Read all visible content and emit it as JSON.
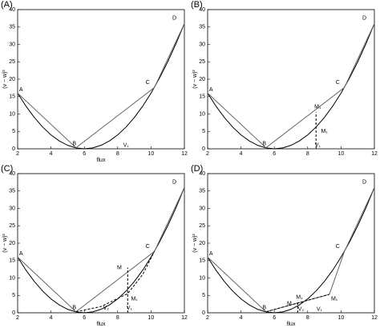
{
  "chart_data": [
    {
      "type": "line",
      "title": "(A)",
      "xlabel": "flux",
      "ylabel": "(v − w)²",
      "xlim": [
        2,
        12
      ],
      "ylim": [
        0,
        40
      ],
      "xticks": [
        2,
        4,
        6,
        8,
        10,
        12
      ],
      "yticks": [
        0,
        5,
        10,
        15,
        20,
        25,
        30,
        35,
        40
      ],
      "series": [
        {
          "color": "#000000",
          "dash": false,
          "x": [
            2,
            2.5,
            3,
            3.5,
            4,
            4.5,
            5,
            5.5,
            6,
            6.5,
            7,
            7.5,
            8,
            8.5,
            9,
            9.5,
            10,
            10.5,
            11,
            11.5,
            12
          ],
          "values": [
            16,
            12.25,
            9,
            6.25,
            4,
            2.25,
            1,
            0.25,
            0,
            0.25,
            1,
            2.25,
            4,
            6.25,
            9,
            12.25,
            16,
            20.25,
            25,
            30.25,
            36
          ]
        },
        {
          "color": "#666666",
          "dash": false,
          "x": [
            2,
            5.5,
            10.2,
            12
          ],
          "values": [
            16,
            0.3,
            17.6,
            36
          ]
        }
      ],
      "annotations": [
        {
          "text": "A",
          "x": 2.2,
          "y": 17
        },
        {
          "text": "B",
          "x": 5.4,
          "y": 1.5
        },
        {
          "text": "C",
          "x": 9.8,
          "y": 19
        },
        {
          "text": "D",
          "x": 11.4,
          "y": 37.5
        },
        {
          "text": "V₁",
          "x": 8.5,
          "y": 1
        }
      ]
    },
    {
      "type": "line",
      "title": "(B)",
      "ylabel": "(v − w)²",
      "xlim": [
        2,
        12
      ],
      "ylim": [
        0,
        40
      ],
      "xticks": [
        2,
        4,
        6,
        8,
        10,
        12
      ],
      "yticks": [
        0,
        5,
        10,
        15,
        20,
        25,
        30,
        35,
        40
      ],
      "series": [
        {
          "color": "#000000",
          "dash": false,
          "x": [
            2,
            2.5,
            3,
            3.5,
            4,
            4.5,
            5,
            5.5,
            6,
            6.5,
            7,
            7.5,
            8,
            8.5,
            9,
            9.5,
            10,
            10.5,
            11,
            11.5,
            12
          ],
          "values": [
            16,
            12.25,
            9,
            6.25,
            4,
            2.25,
            1,
            0.25,
            0,
            0.25,
            1,
            2.25,
            4,
            6.25,
            9,
            12.25,
            16,
            20.25,
            25,
            30.25,
            36
          ]
        },
        {
          "color": "#666666",
          "dash": false,
          "x": [
            2,
            5.5,
            10.2,
            12
          ],
          "values": [
            16,
            0.3,
            17.6,
            36
          ]
        },
        {
          "color": "#000000",
          "dash": true,
          "x": [
            8.5,
            8.5
          ],
          "values": [
            0,
            10.5
          ]
        }
      ],
      "annotations": [
        {
          "text": "A",
          "x": 2.2,
          "y": 17
        },
        {
          "text": "B",
          "x": 5.4,
          "y": 1.5
        },
        {
          "text": "C",
          "x": 9.8,
          "y": 19
        },
        {
          "text": "D",
          "x": 11.4,
          "y": 37.5
        },
        {
          "text": "M₁",
          "x": 8.6,
          "y": 12
        },
        {
          "text": "M₁",
          "x": 9,
          "y": 5
        },
        {
          "text": "V₁",
          "x": 8.6,
          "y": 1
        }
      ]
    },
    {
      "type": "line",
      "title": "(C)",
      "xlabel": "flux",
      "ylabel": "(v − w)²",
      "xlim": [
        2,
        12
      ],
      "ylim": [
        0,
        40
      ],
      "xticks": [
        2,
        4,
        6,
        8,
        10,
        12
      ],
      "yticks": [
        0,
        5,
        10,
        15,
        20,
        25,
        30,
        35,
        40
      ],
      "series": [
        {
          "color": "#000000",
          "dash": false,
          "x": [
            2,
            2.5,
            3,
            3.5,
            4,
            4.5,
            5,
            5.5,
            6,
            6.5,
            7,
            7.5,
            8,
            8.5,
            9,
            9.5,
            10,
            10.5,
            11,
            11.5,
            12
          ],
          "values": [
            16,
            12.25,
            9,
            6.25,
            4,
            2.25,
            1,
            0.25,
            0,
            0.25,
            1,
            2.25,
            4,
            6.25,
            9,
            12.25,
            16,
            20.25,
            25,
            30.25,
            36
          ]
        },
        {
          "color": "#666666",
          "dash": false,
          "x": [
            2,
            5.5,
            10.2,
            12
          ],
          "values": [
            16,
            0.3,
            17.6,
            36
          ]
        },
        {
          "color": "#000000",
          "dash": true,
          "x": [
            5.5,
            7,
            8.6,
            9.5,
            10.2
          ],
          "values": [
            0.3,
            1.8,
            5.5,
            11,
            17.6
          ]
        },
        {
          "color": "#000000",
          "dash": true,
          "x": [
            8.6,
            8.6
          ],
          "values": [
            0,
            13
          ]
        }
      ],
      "annotations": [
        {
          "text": "A",
          "x": 2.2,
          "y": 17
        },
        {
          "text": "B",
          "x": 5.4,
          "y": 1.5
        },
        {
          "text": "C",
          "x": 9.8,
          "y": 19
        },
        {
          "text": "D",
          "x": 11.4,
          "y": 37.5
        },
        {
          "text": "M",
          "x": 8.1,
          "y": 13
        },
        {
          "text": "M₁",
          "x": 9,
          "y": 4
        },
        {
          "text": "V₂",
          "x": 7.3,
          "y": 1.3
        },
        {
          "text": "V₁",
          "x": 8.7,
          "y": 1.3
        }
      ]
    },
    {
      "type": "line",
      "title": "(D)",
      "xlabel": "flux",
      "ylabel": "(v − w)²",
      "xlim": [
        2,
        12
      ],
      "ylim": [
        0,
        40
      ],
      "xticks": [
        2,
        4,
        6,
        8,
        10,
        12
      ],
      "yticks": [
        0,
        5,
        10,
        15,
        20,
        25,
        30,
        35,
        40
      ],
      "series": [
        {
          "color": "#000000",
          "dash": false,
          "x": [
            2,
            2.5,
            3,
            3.5,
            4,
            4.5,
            5,
            5.5,
            6,
            6.5,
            7,
            7.5,
            8,
            8.5,
            9,
            9.5,
            10,
            10.5,
            11,
            11.5,
            12
          ],
          "values": [
            16,
            12.25,
            9,
            6.25,
            4,
            2.25,
            1,
            0.25,
            0,
            0.25,
            1,
            2.25,
            4,
            6.25,
            9,
            12.25,
            16,
            20.25,
            25,
            30.25,
            36
          ]
        },
        {
          "color": "#666666",
          "dash": false,
          "x": [
            2,
            5.5,
            9.3,
            10.2,
            12
          ],
          "values": [
            16,
            0.3,
            5.3,
            17.6,
            36
          ]
        },
        {
          "color": "#000000",
          "dash": true,
          "x": [
            5.5,
            7.4,
            9.3
          ],
          "values": [
            0.3,
            2.8,
            5.3
          ]
        },
        {
          "color": "#000000",
          "dash": true,
          "x": [
            7.4,
            7.4
          ],
          "values": [
            0,
            3.5
          ]
        }
      ],
      "annotations": [
        {
          "text": "A",
          "x": 2.2,
          "y": 17
        },
        {
          "text": "B",
          "x": 5.4,
          "y": 1.5
        },
        {
          "text": "C",
          "x": 9.8,
          "y": 19
        },
        {
          "text": "D",
          "x": 11.4,
          "y": 37.5
        },
        {
          "text": "M",
          "x": 6.9,
          "y": 2.6
        },
        {
          "text": "M₁",
          "x": 7.5,
          "y": 4.4
        },
        {
          "text": "M₁",
          "x": 9.6,
          "y": 4
        },
        {
          "text": "V₂",
          "x": 7.6,
          "y": 1
        },
        {
          "text": "V₁",
          "x": 8.7,
          "y": 1
        }
      ]
    }
  ]
}
